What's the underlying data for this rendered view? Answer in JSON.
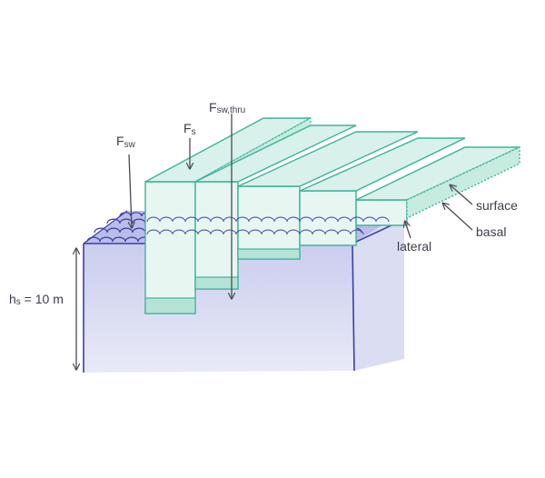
{
  "labels": {
    "fsw_main": "F",
    "fsw_sub": "sw",
    "fs_main": "F",
    "fs_sub": "s",
    "fswthru_main": "F",
    "fswthru_sub": "sw,thru",
    "hs_main": "h",
    "hs_sub": "s",
    "hs_value": " = 10 m",
    "surface": "surface",
    "basal": "basal",
    "lateral": "lateral"
  },
  "colors": {
    "ice_edge": "#3fb39b",
    "ice_top": "#d8f1ea",
    "ice_face": "#e7f6f1",
    "water_edge": "#3b3fa8",
    "water_fill": "#c9cdee",
    "ocean_fill": "#dcdff3",
    "arrow": "#4a4a55"
  }
}
